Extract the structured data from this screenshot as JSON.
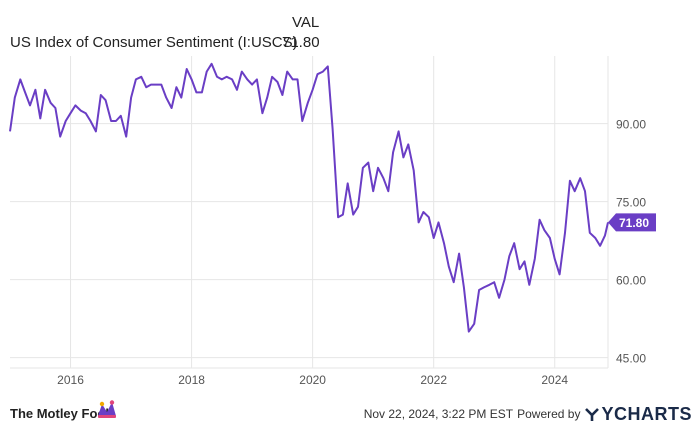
{
  "legend": {
    "val_header": "VAL",
    "series_name": "US Index of Consumer Sentiment (I:USCS)",
    "series_value": "71.80"
  },
  "footer": {
    "brand": "The Motley Fool",
    "timestamp": "Nov 22, 2024, 3:22 PM EST",
    "powered_by": "Powered by",
    "provider": "YCHARTS"
  },
  "colors": {
    "line": "#6a3ec5",
    "badge": "#6a3ec5",
    "grid": "#e6e6e6",
    "axis_text": "#555555"
  },
  "chart_data": {
    "type": "line",
    "title": "",
    "xlabel": "",
    "ylabel": "",
    "ylim": [
      43,
      103
    ],
    "xlim": [
      2015.0,
      2024.88
    ],
    "grid": true,
    "y_axis_side": "right",
    "y_ticks": [
      45,
      60,
      75,
      90
    ],
    "y_tick_labels": [
      "45.00",
      "60.00",
      "75.00",
      "90.00"
    ],
    "x_ticks": [
      2016,
      2018,
      2020,
      2022,
      2024
    ],
    "x_tick_labels": [
      "2016",
      "2018",
      "2020",
      "2022",
      "2024"
    ],
    "last_value_label": "71.80",
    "series": [
      {
        "values": [
          [
            2015.0,
            88.5
          ],
          [
            2015.08,
            95.0
          ],
          [
            2015.17,
            98.5
          ],
          [
            2015.25,
            96.0
          ],
          [
            2015.33,
            93.5
          ],
          [
            2015.42,
            96.5
          ],
          [
            2015.5,
            91.0
          ],
          [
            2015.58,
            96.5
          ],
          [
            2015.67,
            94.0
          ],
          [
            2015.75,
            93.0
          ],
          [
            2015.83,
            87.5
          ],
          [
            2015.92,
            90.5
          ],
          [
            2016.0,
            92.0
          ],
          [
            2016.08,
            93.5
          ],
          [
            2016.17,
            92.5
          ],
          [
            2016.25,
            92.0
          ],
          [
            2016.33,
            90.5
          ],
          [
            2016.42,
            88.5
          ],
          [
            2016.5,
            95.5
          ],
          [
            2016.58,
            94.5
          ],
          [
            2016.67,
            90.5
          ],
          [
            2016.75,
            90.5
          ],
          [
            2016.83,
            91.5
          ],
          [
            2016.92,
            87.5
          ],
          [
            2017.0,
            95.0
          ],
          [
            2017.08,
            98.5
          ],
          [
            2017.17,
            99.0
          ],
          [
            2017.25,
            97.0
          ],
          [
            2017.33,
            97.5
          ],
          [
            2017.42,
            97.5
          ],
          [
            2017.5,
            97.5
          ],
          [
            2017.58,
            95.0
          ],
          [
            2017.67,
            93.0
          ],
          [
            2017.75,
            97.0
          ],
          [
            2017.83,
            95.0
          ],
          [
            2017.92,
            100.5
          ],
          [
            2018.0,
            98.5
          ],
          [
            2018.08,
            96.0
          ],
          [
            2018.17,
            96.0
          ],
          [
            2018.25,
            100.0
          ],
          [
            2018.33,
            101.5
          ],
          [
            2018.42,
            99.0
          ],
          [
            2018.5,
            98.5
          ],
          [
            2018.58,
            99.0
          ],
          [
            2018.67,
            98.5
          ],
          [
            2018.75,
            96.5
          ],
          [
            2018.83,
            100.0
          ],
          [
            2018.92,
            98.5
          ],
          [
            2019.0,
            97.5
          ],
          [
            2019.08,
            98.5
          ],
          [
            2019.17,
            92.0
          ],
          [
            2019.25,
            95.0
          ],
          [
            2019.33,
            99.0
          ],
          [
            2019.42,
            98.0
          ],
          [
            2019.5,
            95.5
          ],
          [
            2019.58,
            100.0
          ],
          [
            2019.67,
            98.5
          ],
          [
            2019.75,
            98.5
          ],
          [
            2019.83,
            90.5
          ],
          [
            2019.92,
            94.0
          ],
          [
            2020.0,
            96.5
          ],
          [
            2020.08,
            99.5
          ],
          [
            2020.17,
            100.0
          ],
          [
            2020.25,
            101.0
          ],
          [
            2020.33,
            89.0
          ],
          [
            2020.42,
            72.0
          ],
          [
            2020.5,
            72.5
          ],
          [
            2020.58,
            78.5
          ],
          [
            2020.67,
            72.5
          ],
          [
            2020.75,
            74.0
          ],
          [
            2020.83,
            81.5
          ],
          [
            2020.92,
            82.5
          ],
          [
            2021.0,
            77.0
          ],
          [
            2021.08,
            81.5
          ],
          [
            2021.17,
            79.5
          ],
          [
            2021.25,
            77.0
          ],
          [
            2021.33,
            84.5
          ],
          [
            2021.42,
            88.5
          ],
          [
            2021.5,
            83.5
          ],
          [
            2021.58,
            86.0
          ],
          [
            2021.67,
            81.0
          ],
          [
            2021.75,
            71.0
          ],
          [
            2021.83,
            73.0
          ],
          [
            2021.92,
            72.0
          ],
          [
            2022.0,
            68.0
          ],
          [
            2022.08,
            71.0
          ],
          [
            2022.17,
            67.0
          ],
          [
            2022.25,
            62.5
          ],
          [
            2022.33,
            59.5
          ],
          [
            2022.42,
            65.0
          ],
          [
            2022.5,
            58.5
          ],
          [
            2022.58,
            50.0
          ],
          [
            2022.67,
            51.5
          ],
          [
            2022.75,
            58.0
          ],
          [
            2022.83,
            58.5
          ],
          [
            2022.92,
            59.0
          ],
          [
            2023.0,
            59.5
          ],
          [
            2023.08,
            56.5
          ],
          [
            2023.17,
            60.0
          ],
          [
            2023.25,
            64.5
          ],
          [
            2023.33,
            67.0
          ],
          [
            2023.42,
            62.0
          ],
          [
            2023.5,
            63.5
          ],
          [
            2023.58,
            59.0
          ],
          [
            2023.67,
            64.0
          ],
          [
            2023.75,
            71.5
          ],
          [
            2023.83,
            69.5
          ],
          [
            2023.92,
            68.0
          ],
          [
            2024.0,
            64.0
          ],
          [
            2024.08,
            61.0
          ],
          [
            2024.17,
            69.0
          ],
          [
            2024.25,
            79.0
          ],
          [
            2024.33,
            77.0
          ],
          [
            2024.42,
            79.5
          ],
          [
            2024.5,
            77.0
          ],
          [
            2024.58,
            69.0
          ],
          [
            2024.67,
            68.0
          ],
          [
            2024.75,
            66.5
          ],
          [
            2024.83,
            68.5
          ],
          [
            2024.88,
            71.0
          ]
        ]
      }
    ]
  }
}
